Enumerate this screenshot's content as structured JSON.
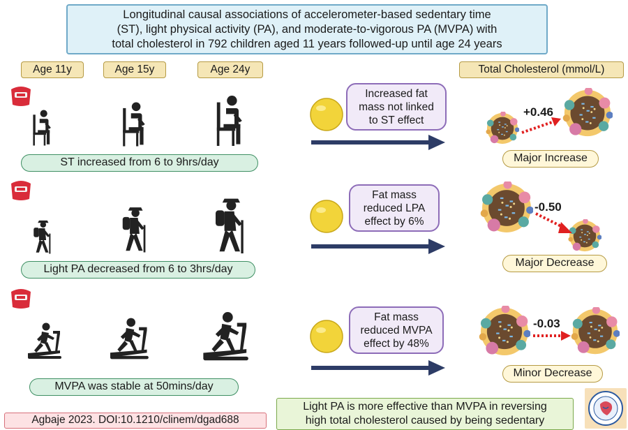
{
  "title": {
    "line1": "Longitudinal causal associations of accelerometer-based sedentary time",
    "line2": "(ST), light physical activity (PA), and moderate-to-vigorous PA (MVPA) with",
    "line3": "total cholesterol in 792 children aged 11 years followed-up until age 24 years"
  },
  "ages": [
    "Age 11y",
    "Age 15y",
    "Age 24y"
  ],
  "outcome_header": "Total Cholesterol (mmol/L)",
  "rows": [
    {
      "label": "ST increased from 6 to 9hrs/day",
      "speech": [
        "Increased fat",
        "mass not linked",
        "to ST effect"
      ],
      "delta": "+0.46",
      "effect": "Major Increase",
      "figure_icon": "sitting-person-icon"
    },
    {
      "label": "Light PA decreased from 6 to 3hrs/day",
      "speech": [
        "Fat mass",
        "reduced LPA",
        "effect by 6%"
      ],
      "delta": "-0.50",
      "effect": "Major Decrease",
      "figure_icon": "hiking-person-icon"
    },
    {
      "label": "MVPA was stable at 50mins/day",
      "speech": [
        "Fat mass",
        "reduced MVPA",
        "effect by 48%"
      ],
      "delta": "-0.03",
      "effect": "Minor Decrease",
      "figure_icon": "treadmill-runner-icon"
    }
  ],
  "citation": "Agbaje 2023. DOI:10.1210/clinem/dgad688",
  "conclusion": {
    "line1": "Light PA is more effective than MVPA in reversing",
    "line2": "high total cholesterol caused by being sedentary"
  },
  "colors": {
    "arrow_navy": "#2d3c66",
    "red_dotted": "#e02020",
    "fat_ball": "#f2d43a",
    "cholesterol_core": "#6b4a2f"
  }
}
